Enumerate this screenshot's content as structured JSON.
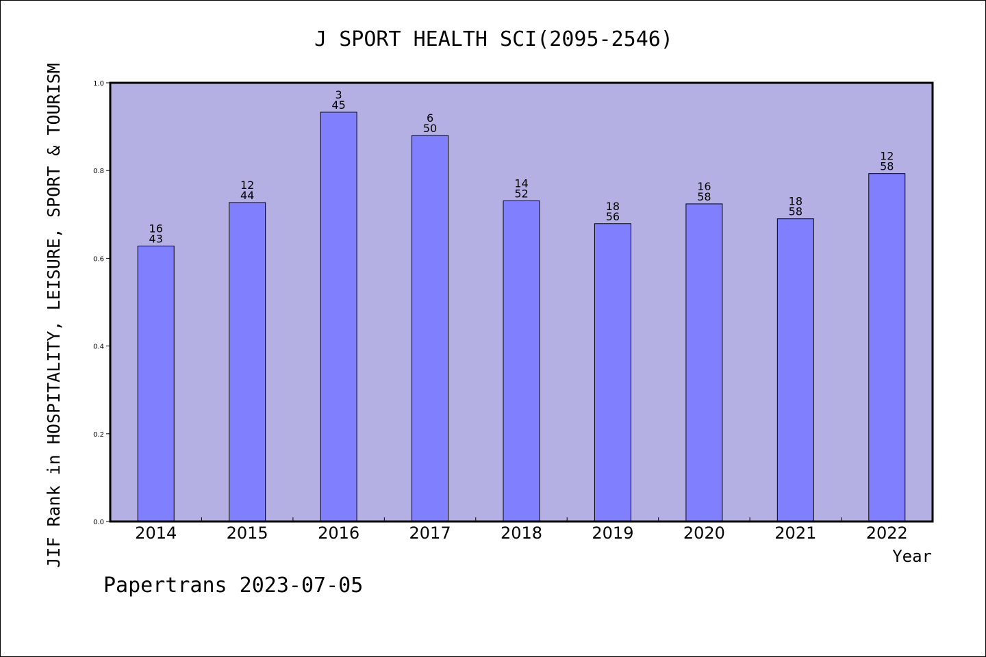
{
  "chart_data": {
    "type": "bar",
    "title": "J SPORT HEALTH SCI(2095-2546)",
    "xlabel": "Year",
    "ylabel": "JIF Rank in HOSPITALITY, LEISURE, SPORT & TOURISM",
    "ylim": [
      0,
      1.0
    ],
    "yticks": [
      "0.0",
      "0.2",
      "0.4",
      "0.6",
      "0.8",
      "1.0"
    ],
    "ytick_values": [
      0,
      0.2,
      0.4,
      0.6,
      0.8,
      1.0
    ],
    "categories": [
      "2014",
      "2015",
      "2016",
      "2017",
      "2018",
      "2019",
      "2020",
      "2021",
      "2022"
    ],
    "values": [
      0.628,
      0.727,
      0.933,
      0.88,
      0.731,
      0.679,
      0.724,
      0.69,
      0.793
    ],
    "rank": [
      "16",
      "12",
      "3",
      "6",
      "14",
      "18",
      "16",
      "18",
      "12"
    ],
    "total": [
      "43",
      "44",
      "45",
      "50",
      "52",
      "56",
      "58",
      "58",
      "58"
    ],
    "grid": false,
    "colors": {
      "plot_background": "#b5b0e3",
      "bar_fill": "#8080ff",
      "bar_stroke": "#000000"
    }
  },
  "footer": "Papertrans 2023-07-05"
}
